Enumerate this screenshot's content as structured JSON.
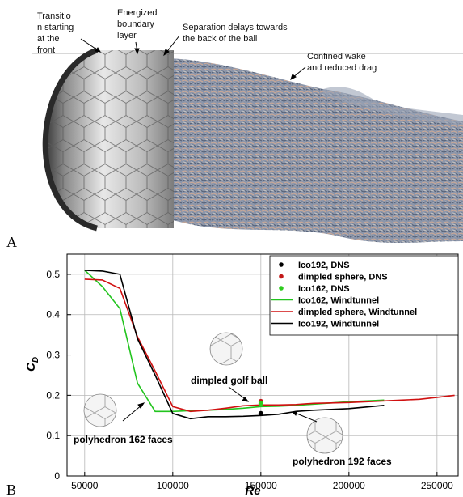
{
  "panel_a": {
    "letter": "A",
    "annotations": {
      "transition": [
        "Transitio",
        "n starting",
        "at the",
        "front"
      ],
      "energized": [
        "Energized",
        "boundary",
        "layer"
      ],
      "separation": [
        "Separation delays towards",
        "the back of the ball"
      ],
      "wake": [
        "Confined wake",
        "and reduced drag"
      ]
    }
  },
  "panel_b": {
    "letter": "B",
    "labels": {
      "polyhedron162": "polyhedron 162 faces",
      "dimpled": "dimpled golf ball",
      "polyhedron192": "polyhedron 192 faces"
    }
  },
  "chart_data": {
    "type": "line",
    "xlabel": "Re",
    "ylabel": "C_D",
    "xlim": [
      40000,
      262000
    ],
    "ylim": [
      0,
      0.55
    ],
    "xticks": [
      50000,
      100000,
      150000,
      200000,
      250000
    ],
    "yticks": [
      0,
      0.1,
      0.2,
      0.3,
      0.4,
      0.5
    ],
    "grid": true,
    "legend_position": "top-right",
    "series": [
      {
        "name": "Ico162, Windtunnel",
        "kind": "line",
        "color": "#22c41e",
        "x": [
          50000,
          60000,
          70000,
          80000,
          90000,
          100000,
          110000,
          120000,
          130000,
          140000,
          150000,
          160000,
          170000,
          180000,
          190000,
          200000,
          210000,
          220000
        ],
        "y": [
          0.51,
          0.47,
          0.415,
          0.23,
          0.16,
          0.16,
          0.162,
          0.163,
          0.165,
          0.168,
          0.172,
          0.173,
          0.175,
          0.178,
          0.181,
          0.184,
          0.186,
          0.188
        ]
      },
      {
        "name": "dimpled sphere, Windtunnel",
        "kind": "line",
        "color": "#d01010",
        "x": [
          50000,
          60000,
          70000,
          80000,
          90000,
          100000,
          110000,
          120000,
          130000,
          140000,
          150000,
          160000,
          170000,
          180000,
          190000,
          200000,
          210000,
          220000,
          230000,
          240000,
          250000,
          260000
        ],
        "y": [
          0.488,
          0.486,
          0.465,
          0.345,
          0.26,
          0.172,
          0.16,
          0.163,
          0.168,
          0.174,
          0.176,
          0.176,
          0.177,
          0.18,
          0.181,
          0.182,
          0.184,
          0.186,
          0.188,
          0.19,
          0.195,
          0.2
        ]
      },
      {
        "name": "Ico192, Windtunnel",
        "kind": "line",
        "color": "#000000",
        "x": [
          50000,
          60000,
          70000,
          80000,
          90000,
          100000,
          110000,
          120000,
          130000,
          140000,
          150000,
          160000,
          170000,
          180000,
          190000,
          200000,
          210000,
          220000
        ],
        "y": [
          0.51,
          0.508,
          0.5,
          0.34,
          0.25,
          0.155,
          0.142,
          0.147,
          0.147,
          0.148,
          0.15,
          0.153,
          0.16,
          0.163,
          0.165,
          0.167,
          0.171,
          0.175
        ]
      },
      {
        "name": "Ico192, DNS",
        "kind": "point",
        "color": "#000000",
        "x": [
          150000
        ],
        "y": [
          0.155
        ]
      },
      {
        "name": "dimpled sphere, DNS",
        "kind": "point",
        "color": "#c21818",
        "x": [
          150000
        ],
        "y": [
          0.185
        ]
      },
      {
        "name": "Ico162, DNS",
        "kind": "point",
        "color": "#2ecc1e",
        "x": [
          150000
        ],
        "y": [
          0.18
        ]
      }
    ],
    "legend_order": [
      "Ico192, DNS",
      "dimpled sphere, DNS",
      "Ico162, DNS",
      "Ico162, Windtunnel",
      "dimpled sphere, Windtunnel",
      "Ico192, Windtunnel"
    ]
  }
}
